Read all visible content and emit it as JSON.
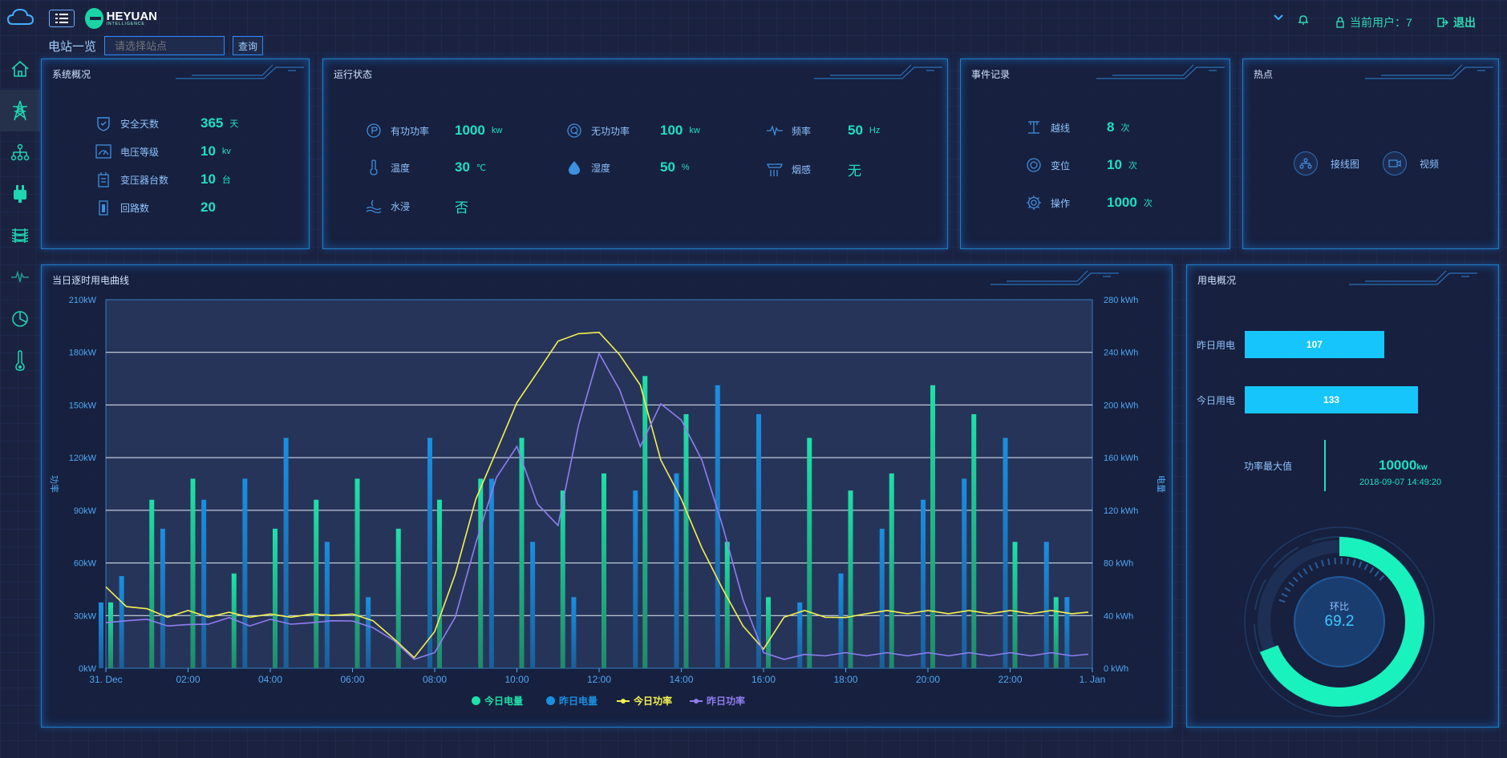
{
  "header": {
    "logo_main": "HEYUAN",
    "logo_sub": "INTELLIGENCE",
    "current_user_label": "当前用户：7",
    "logout_label": "退出",
    "accent": "#1ee0c1"
  },
  "station": {
    "label": "电站一览",
    "placeholder": "请选择站点",
    "query_label": "查询"
  },
  "sidebar": {
    "items": [
      "home-icon",
      "tower-icon",
      "topology-icon",
      "plug-icon",
      "lines-icon",
      "pulse-icon",
      "pie-icon",
      "thermometer-icon"
    ],
    "active_index": 1
  },
  "overview": {
    "title": "系统概况",
    "items": [
      {
        "label": "安全天数",
        "value": "365",
        "unit": "天"
      },
      {
        "label": "电压等级",
        "value": "10",
        "unit": "kv"
      },
      {
        "label": "变压器台数",
        "value": "10",
        "unit": "台"
      },
      {
        "label": "回路数",
        "value": "20",
        "unit": ""
      }
    ]
  },
  "status": {
    "title": "运行状态",
    "items": [
      {
        "label": "有功功率",
        "value": "1000",
        "unit": "kw"
      },
      {
        "label": "无功功率",
        "value": "100",
        "unit": "kw"
      },
      {
        "label": "频率",
        "value": "50",
        "unit": "Hz"
      },
      {
        "label": "温度",
        "value": "30",
        "unit": "℃"
      },
      {
        "label": "湿度",
        "value": "50",
        "unit": "%"
      },
      {
        "label": "烟感",
        "value": "无",
        "unit": ""
      },
      {
        "label": "水浸",
        "value": "否",
        "unit": ""
      }
    ]
  },
  "events": {
    "title": "事件记录",
    "items": [
      {
        "label": "越线",
        "value": "8",
        "unit": "次"
      },
      {
        "label": "变位",
        "value": "10",
        "unit": "次"
      },
      {
        "label": "操作",
        "value": "1000",
        "unit": "次"
      }
    ]
  },
  "hot": {
    "title": "热点",
    "items": [
      {
        "label": "接线图",
        "icon": "diagram-icon"
      },
      {
        "label": "视频",
        "icon": "camera-icon"
      }
    ]
  },
  "chart_panel": {
    "title": "当日逐时用电曲线"
  },
  "chart_data": {
    "type": "bar+line",
    "left_axis_label": "功率",
    "right_axis_label": "电量",
    "left_ticks": [
      "0kW",
      "30kW",
      "60kW",
      "90kW",
      "120kW",
      "150kW",
      "180kW",
      "210kW"
    ],
    "right_ticks": [
      "0 kWh",
      "40 kWh",
      "80 kWh",
      "120 kWh",
      "160 kWh",
      "200 kWh",
      "240 kWh",
      "280 kWh"
    ],
    "x_ticks": [
      "31. Dec",
      "02:00",
      "04:00",
      "06:00",
      "08:00",
      "10:00",
      "12:00",
      "14:00",
      "16:00",
      "18:00",
      "20:00",
      "22:00",
      "1. Jan"
    ],
    "left_range": [
      0,
      210
    ],
    "right_range": [
      0,
      280
    ],
    "x_range_hours": [
      0,
      24
    ],
    "hours": [
      0,
      0.5,
      1,
      1.5,
      2,
      2.5,
      3,
      3.5,
      4,
      4.5,
      5,
      5.5,
      6,
      6.5,
      7,
      7.5,
      8,
      8.5,
      9,
      9.5,
      10,
      10.5,
      11,
      11.5,
      12,
      12.5,
      13,
      13.5,
      14,
      14.5,
      15,
      15.5,
      16,
      16.5,
      17,
      17.5,
      18,
      18.5,
      19,
      19.5,
      20,
      20.5,
      21,
      21.5,
      22,
      22.5,
      23,
      23.5
    ],
    "series": [
      {
        "name": "今日电量",
        "axis": "right",
        "color": "#1ee0a8",
        "values": [
          50,
          0,
          128,
          0,
          144,
          0,
          72,
          0,
          106,
          0,
          128,
          0,
          144,
          0,
          106,
          0,
          128,
          0,
          144,
          0,
          175,
          0,
          135,
          0,
          148,
          0,
          222,
          0,
          193,
          0,
          96,
          0,
          54,
          0,
          175,
          0,
          135,
          0,
          148,
          0,
          215,
          0,
          193,
          0,
          96,
          0,
          54,
          0
        ]
      },
      {
        "name": "昨日电量",
        "axis": "right",
        "color": "#1a8fe0",
        "values": [
          50,
          70,
          0,
          106,
          0,
          128,
          0,
          144,
          0,
          175,
          0,
          96,
          0,
          54,
          0,
          0,
          175,
          0,
          0,
          144,
          0,
          96,
          0,
          54,
          0,
          0,
          135,
          0,
          148,
          0,
          215,
          0,
          193,
          0,
          50,
          0,
          72,
          0,
          106,
          0,
          128,
          0,
          144,
          0,
          175,
          0,
          96,
          54
        ]
      },
      {
        "name": "今日功率",
        "axis": "left",
        "color": "#f4f050",
        "values": [
          45,
          36,
          33,
          30,
          32,
          30,
          31,
          30,
          30,
          30,
          30,
          31,
          30,
          28,
          16,
          7,
          20,
          55,
          95,
          125,
          150,
          170,
          185,
          192,
          190,
          180,
          160,
          120,
          95,
          70,
          44,
          25,
          10,
          30,
          32,
          30,
          28,
          32,
          32,
          32,
          32,
          32,
          32,
          32,
          32,
          32,
          32,
          32
        ]
      },
      {
        "name": "昨日功率",
        "axis": "left",
        "color": "#8f7ef0",
        "values": [
          25,
          28,
          27,
          25,
          24,
          26,
          28,
          25,
          27,
          26,
          25,
          28,
          26,
          24,
          15,
          6,
          8,
          30,
          70,
          110,
          125,
          95,
          80,
          140,
          178,
          160,
          125,
          152,
          140,
          120,
          80,
          40,
          8,
          6,
          7,
          8,
          8,
          8,
          8,
          8,
          8,
          8,
          8,
          8,
          8,
          8,
          8,
          8
        ]
      }
    ]
  },
  "usage": {
    "title": "用电概况",
    "yesterday_label": "昨日用电",
    "yesterday_value": 107,
    "today_label": "今日用电",
    "today_value": 133,
    "bar_max": 160,
    "max_power_label": "功率最大值",
    "max_power_value": "10000",
    "max_power_unit": "kw",
    "max_power_time": "2018-09-07 14:49:20",
    "ratio_label": "环比",
    "ratio_value": "69.2",
    "ratio_fraction": 0.692
  }
}
